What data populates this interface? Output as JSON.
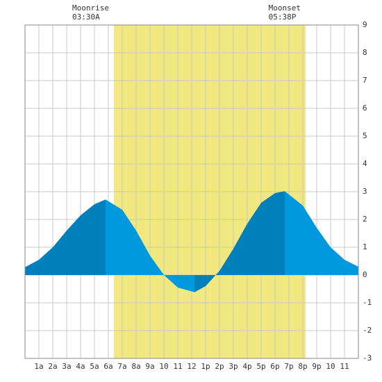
{
  "chart_data": {
    "type": "tide",
    "x": [
      0,
      1,
      2,
      3,
      4,
      5,
      5.8,
      7,
      8,
      9,
      10,
      11,
      12.2,
      13,
      14,
      15,
      16,
      17,
      18,
      18.7,
      20,
      21,
      22,
      23,
      24
    ],
    "series": [
      {
        "name": "Tide",
        "color": "#0099dd",
        "rising_color": "#0080bb",
        "values": [
          0.28,
          0.55,
          1.0,
          1.6,
          2.15,
          2.55,
          2.72,
          2.35,
          1.6,
          0.7,
          0.0,
          -0.45,
          -0.62,
          -0.4,
          0.15,
          0.95,
          1.85,
          2.6,
          2.95,
          3.02,
          2.5,
          1.7,
          1.0,
          0.55,
          0.3
        ]
      }
    ],
    "daylight": {
      "start": 6.4,
      "end": 20.2,
      "color": "#f2e880"
    },
    "annotations": [
      {
        "label": "Moonrise",
        "time": "03:30A",
        "hour": 3.5
      },
      {
        "label": "Moonset",
        "time": "05:38P",
        "hour": 17.63
      }
    ],
    "xlim": [
      0,
      24
    ],
    "ylim": [
      -3,
      9
    ],
    "xticks": [
      {
        "value": 1,
        "label": "1a"
      },
      {
        "value": 2,
        "label": "2a"
      },
      {
        "value": 3,
        "label": "3a"
      },
      {
        "value": 4,
        "label": "4a"
      },
      {
        "value": 5,
        "label": "5a"
      },
      {
        "value": 6,
        "label": "6a"
      },
      {
        "value": 7,
        "label": "7a"
      },
      {
        "value": 8,
        "label": "8a"
      },
      {
        "value": 9,
        "label": "9a"
      },
      10,
      11,
      12,
      {
        "value": 13,
        "label": "1p"
      },
      {
        "value": 14,
        "label": "2p"
      },
      {
        "value": 15,
        "label": "3p"
      },
      {
        "value": 16,
        "label": "4p"
      },
      {
        "value": 17,
        "label": "5p"
      },
      {
        "value": 18,
        "label": "6p"
      },
      {
        "value": 19,
        "label": "7p"
      },
      {
        "value": 20,
        "label": "8p"
      },
      {
        "value": 21,
        "label": "9p"
      },
      {
        "value": 22,
        "label": "10"
      },
      {
        "value": 23,
        "label": "11"
      }
    ],
    "yticks": [
      -3,
      -2,
      -1,
      0,
      1,
      2,
      3,
      4,
      5,
      6,
      7,
      8,
      9
    ],
    "grid": true
  }
}
